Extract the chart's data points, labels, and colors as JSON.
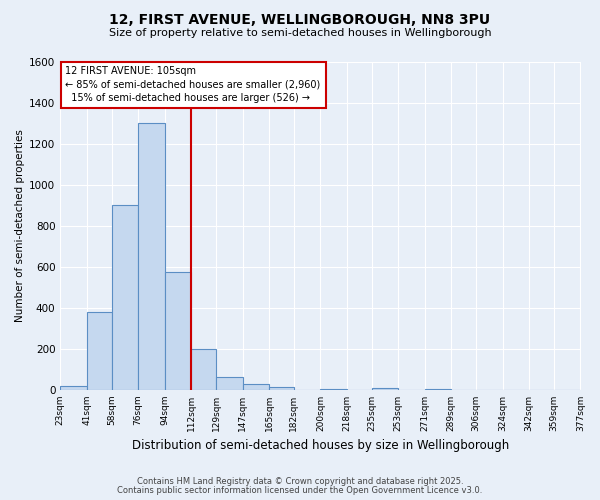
{
  "title": "12, FIRST AVENUE, WELLINGBOROUGH, NN8 3PU",
  "subtitle": "Size of property relative to semi-detached houses in Wellingborough",
  "xlabel": "Distribution of semi-detached houses by size in Wellingborough",
  "ylabel": "Number of semi-detached properties",
  "bin_labels": [
    "23sqm",
    "41sqm",
    "58sqm",
    "76sqm",
    "94sqm",
    "112sqm",
    "129sqm",
    "147sqm",
    "165sqm",
    "182sqm",
    "200sqm",
    "218sqm",
    "235sqm",
    "253sqm",
    "271sqm",
    "289sqm",
    "306sqm",
    "324sqm",
    "342sqm",
    "359sqm",
    "377sqm"
  ],
  "bin_edges": [
    23,
    41,
    58,
    76,
    94,
    112,
    129,
    147,
    165,
    182,
    200,
    218,
    235,
    253,
    271,
    289,
    306,
    324,
    342,
    359,
    377
  ],
  "bar_heights": [
    20,
    380,
    900,
    1300,
    575,
    200,
    65,
    28,
    12,
    0,
    5,
    0,
    8,
    0,
    5,
    0,
    0,
    0,
    0,
    0
  ],
  "bar_color": "#c5d8ef",
  "bar_edge_color": "#5b8ec4",
  "red_line_x": 112,
  "annotation_line1": "12 FIRST AVENUE: 105sqm",
  "annotation_line2": "← 85% of semi-detached houses are smaller (2,960)",
  "annotation_line3": "  15% of semi-detached houses are larger (526) →",
  "annotation_box_color": "#ffffff",
  "annotation_box_edge_color": "#cc0000",
  "ylim": [
    0,
    1600
  ],
  "yticks": [
    0,
    200,
    400,
    600,
    800,
    1000,
    1200,
    1400,
    1600
  ],
  "background_color": "#e8eff8",
  "grid_color": "#ffffff",
  "footer_line1": "Contains HM Land Registry data © Crown copyright and database right 2025.",
  "footer_line2": "Contains public sector information licensed under the Open Government Licence v3.0."
}
